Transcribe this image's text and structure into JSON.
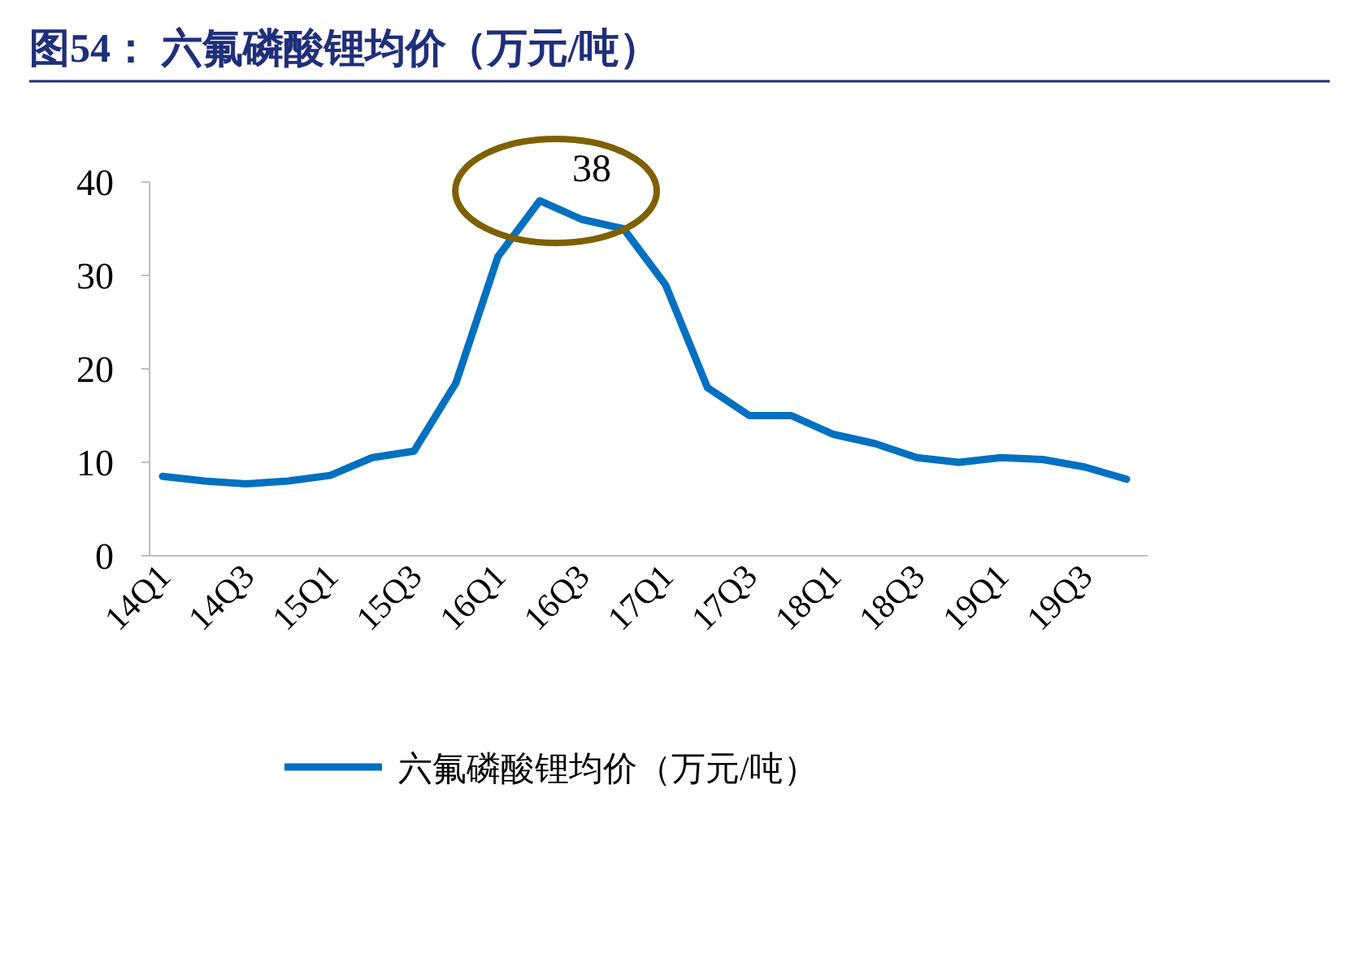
{
  "chart_data": {
    "type": "line",
    "title": "图54：  六氟磷酸锂均价（万元/吨）",
    "categories": [
      "14Q1",
      null,
      "14Q3",
      null,
      "15Q1",
      null,
      "15Q3",
      null,
      "16Q1",
      null,
      "16Q3",
      null,
      "17Q1",
      null,
      "17Q3",
      null,
      "18Q1",
      null,
      "18Q3",
      null,
      "19Q1",
      null,
      "19Q3",
      null
    ],
    "series": [
      {
        "name": "六氟磷酸锂均价（万元/吨）",
        "color": "#0070c0",
        "values": [
          8.5,
          8.0,
          7.7,
          8.0,
          8.6,
          10.5,
          11.2,
          18.5,
          32,
          38,
          36,
          35,
          29,
          18,
          15,
          15,
          13,
          12,
          10.5,
          10,
          10.5,
          10.3,
          9.5,
          8.2
        ],
        "value_labels": [
          null,
          null,
          null,
          null,
          null,
          null,
          null,
          null,
          null,
          "38",
          null,
          null,
          null,
          null,
          null,
          null,
          null,
          null,
          null,
          null,
          null,
          null,
          null,
          null
        ]
      }
    ],
    "ylim": [
      0,
      40
    ],
    "yticks": [
      0,
      10,
      20,
      30,
      40
    ],
    "grid": false,
    "legend": "bottom",
    "marker": "none",
    "line_style": "solid"
  }
}
